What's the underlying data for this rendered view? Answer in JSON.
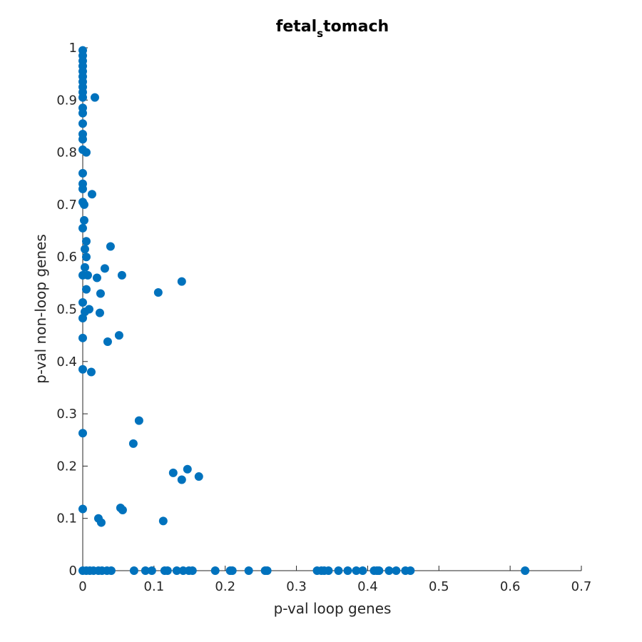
{
  "chart_data": {
    "type": "scatter",
    "title_main": "fetal",
    "title_sub": "s",
    "title_rest": "tomach",
    "xlabel": "p-val loop genes",
    "ylabel": "p-val non-loop genes",
    "xlim": [
      0,
      0.7
    ],
    "ylim": [
      0,
      1
    ],
    "xticks": [
      "0",
      "0.1",
      "0.2",
      "0.3",
      "0.4",
      "0.5",
      "0.6",
      "0.7"
    ],
    "yticks": [
      "0",
      "0.1",
      "0.2",
      "0.3",
      "0.4",
      "0.5",
      "0.6",
      "0.7",
      "0.8",
      "0.9",
      "1"
    ],
    "grid": false,
    "color": "#0072BD",
    "points": [
      {
        "x": 0.0,
        "y": 0.995
      },
      {
        "x": 0.0,
        "y": 0.985
      },
      {
        "x": 0.0,
        "y": 0.975
      },
      {
        "x": 0.0,
        "y": 0.965
      },
      {
        "x": 0.0,
        "y": 0.955
      },
      {
        "x": 0.0,
        "y": 0.945
      },
      {
        "x": 0.0,
        "y": 0.935
      },
      {
        "x": 0.0,
        "y": 0.925
      },
      {
        "x": 0.0,
        "y": 0.915
      },
      {
        "x": 0.0,
        "y": 0.905
      },
      {
        "x": 0.017,
        "y": 0.905
      },
      {
        "x": 0.0,
        "y": 0.885
      },
      {
        "x": 0.0,
        "y": 0.875
      },
      {
        "x": 0.0,
        "y": 0.855
      },
      {
        "x": 0.0,
        "y": 0.835
      },
      {
        "x": 0.0,
        "y": 0.825
      },
      {
        "x": 0.0,
        "y": 0.805
      },
      {
        "x": 0.005,
        "y": 0.8
      },
      {
        "x": 0.0,
        "y": 0.76
      },
      {
        "x": 0.0,
        "y": 0.74
      },
      {
        "x": 0.0,
        "y": 0.73
      },
      {
        "x": 0.013,
        "y": 0.72
      },
      {
        "x": 0.0,
        "y": 0.705
      },
      {
        "x": 0.002,
        "y": 0.7
      },
      {
        "x": 0.002,
        "y": 0.67
      },
      {
        "x": 0.0,
        "y": 0.655
      },
      {
        "x": 0.005,
        "y": 0.63
      },
      {
        "x": 0.003,
        "y": 0.615
      },
      {
        "x": 0.039,
        "y": 0.62
      },
      {
        "x": 0.005,
        "y": 0.6
      },
      {
        "x": 0.003,
        "y": 0.58
      },
      {
        "x": 0.031,
        "y": 0.578
      },
      {
        "x": 0.0,
        "y": 0.565
      },
      {
        "x": 0.007,
        "y": 0.565
      },
      {
        "x": 0.055,
        "y": 0.565
      },
      {
        "x": 0.02,
        "y": 0.56
      },
      {
        "x": 0.139,
        "y": 0.553
      },
      {
        "x": 0.005,
        "y": 0.538
      },
      {
        "x": 0.106,
        "y": 0.532
      },
      {
        "x": 0.025,
        "y": 0.53
      },
      {
        "x": 0.0,
        "y": 0.513
      },
      {
        "x": 0.009,
        "y": 0.5
      },
      {
        "x": 0.003,
        "y": 0.495
      },
      {
        "x": 0.024,
        "y": 0.493
      },
      {
        "x": 0.0,
        "y": 0.483
      },
      {
        "x": 0.051,
        "y": 0.45
      },
      {
        "x": 0.0,
        "y": 0.445
      },
      {
        "x": 0.035,
        "y": 0.438
      },
      {
        "x": 0.0,
        "y": 0.385
      },
      {
        "x": 0.012,
        "y": 0.38
      },
      {
        "x": 0.079,
        "y": 0.287
      },
      {
        "x": 0.0,
        "y": 0.263
      },
      {
        "x": 0.071,
        "y": 0.243
      },
      {
        "x": 0.147,
        "y": 0.194
      },
      {
        "x": 0.127,
        "y": 0.187
      },
      {
        "x": 0.163,
        "y": 0.18
      },
      {
        "x": 0.139,
        "y": 0.174
      },
      {
        "x": 0.0,
        "y": 0.118
      },
      {
        "x": 0.053,
        "y": 0.12
      },
      {
        "x": 0.056,
        "y": 0.116
      },
      {
        "x": 0.022,
        "y": 0.1
      },
      {
        "x": 0.026,
        "y": 0.092
      },
      {
        "x": 0.113,
        "y": 0.095
      },
      {
        "x": 0.0,
        "y": 0.0
      },
      {
        "x": 0.005,
        "y": 0.0
      },
      {
        "x": 0.01,
        "y": 0.0
      },
      {
        "x": 0.015,
        "y": 0.0
      },
      {
        "x": 0.022,
        "y": 0.0
      },
      {
        "x": 0.027,
        "y": 0.0
      },
      {
        "x": 0.034,
        "y": 0.0
      },
      {
        "x": 0.04,
        "y": 0.0
      },
      {
        "x": 0.072,
        "y": 0.0
      },
      {
        "x": 0.088,
        "y": 0.0
      },
      {
        "x": 0.097,
        "y": 0.0
      },
      {
        "x": 0.115,
        "y": 0.0
      },
      {
        "x": 0.119,
        "y": 0.0
      },
      {
        "x": 0.132,
        "y": 0.0
      },
      {
        "x": 0.141,
        "y": 0.0
      },
      {
        "x": 0.149,
        "y": 0.0
      },
      {
        "x": 0.154,
        "y": 0.0
      },
      {
        "x": 0.186,
        "y": 0.0
      },
      {
        "x": 0.207,
        "y": 0.0
      },
      {
        "x": 0.21,
        "y": 0.0
      },
      {
        "x": 0.233,
        "y": 0.0
      },
      {
        "x": 0.256,
        "y": 0.0
      },
      {
        "x": 0.259,
        "y": 0.0
      },
      {
        "x": 0.329,
        "y": 0.0
      },
      {
        "x": 0.335,
        "y": 0.0
      },
      {
        "x": 0.339,
        "y": 0.0
      },
      {
        "x": 0.345,
        "y": 0.0
      },
      {
        "x": 0.359,
        "y": 0.0
      },
      {
        "x": 0.372,
        "y": 0.0
      },
      {
        "x": 0.384,
        "y": 0.0
      },
      {
        "x": 0.393,
        "y": 0.0
      },
      {
        "x": 0.409,
        "y": 0.0
      },
      {
        "x": 0.413,
        "y": 0.0
      },
      {
        "x": 0.416,
        "y": 0.0
      },
      {
        "x": 0.43,
        "y": 0.0
      },
      {
        "x": 0.44,
        "y": 0.0
      },
      {
        "x": 0.453,
        "y": 0.0
      },
      {
        "x": 0.46,
        "y": 0.0
      },
      {
        "x": 0.621,
        "y": 0.0
      }
    ]
  }
}
